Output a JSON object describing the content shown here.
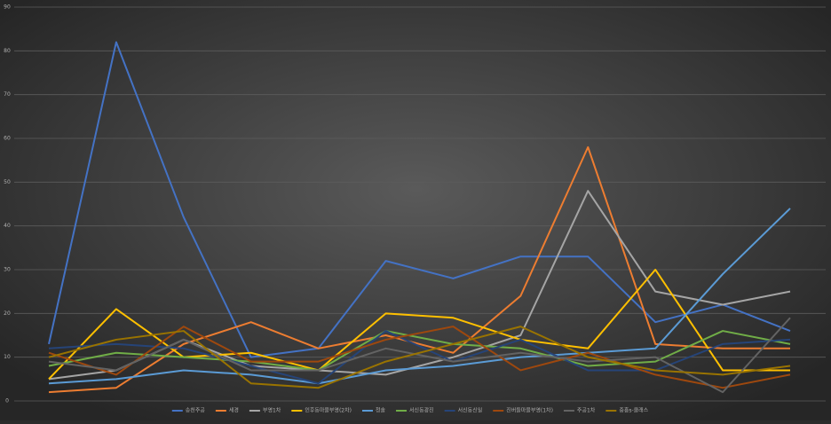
{
  "chart_data": {
    "type": "line",
    "categories": [
      null,
      null,
      null,
      null,
      null,
      null,
      null,
      null,
      null,
      null,
      null,
      null
    ],
    "ylim": [
      0,
      90
    ],
    "yticks": [
      0,
      10,
      20,
      30,
      40,
      50,
      60,
      70,
      80,
      90
    ],
    "grid": true,
    "legend": "bottom",
    "series": [
      {
        "name": "송천주공",
        "color": "#4472c4",
        "values": [
          13,
          82,
          42,
          10,
          12,
          32,
          28,
          33,
          33,
          18,
          22,
          16
        ]
      },
      {
        "name": "세경",
        "color": "#ed7d31",
        "values": [
          2,
          3,
          13,
          18,
          12,
          15,
          11,
          24,
          58,
          13,
          12,
          12
        ]
      },
      {
        "name": "부영1차",
        "color": "#a5a5a5",
        "values": [
          5,
          7,
          14,
          8,
          7,
          6,
          10,
          15,
          48,
          25,
          22,
          25
        ]
      },
      {
        "name": "인후동마을부영(2차)",
        "color": "#ffc000",
        "values": [
          5,
          21,
          10,
          11,
          7,
          20,
          19,
          14,
          12,
          30,
          7,
          7
        ]
      },
      {
        "name": "청솔",
        "color": "#5b9bd5",
        "values": [
          4,
          5,
          7,
          6,
          4,
          7,
          8,
          10,
          11,
          12,
          29,
          44
        ]
      },
      {
        "name": "서신동광진",
        "color": "#70ad47",
        "values": [
          8,
          11,
          10,
          9,
          7,
          16,
          13,
          12,
          8,
          9,
          16,
          13
        ]
      },
      {
        "name": "서신동신일",
        "color": "#264478",
        "values": [
          12,
          13,
          12,
          8,
          4,
          16,
          9,
          14,
          7,
          7,
          13,
          14
        ]
      },
      {
        "name": "진버들마을부영(1차)",
        "color": "#9e480e",
        "values": [
          11,
          6,
          17,
          9,
          9,
          14,
          17,
          7,
          11,
          6,
          3,
          6
        ]
      },
      {
        "name": "주공1차",
        "color": "#636363",
        "values": [
          9,
          7,
          14,
          7,
          7,
          12,
          9,
          11,
          9,
          10,
          2,
          19
        ]
      },
      {
        "name": "중흥s-클래스",
        "color": "#997300",
        "values": [
          10,
          14,
          16,
          4,
          3,
          9,
          13,
          17,
          10,
          7,
          6,
          8
        ]
      }
    ]
  }
}
